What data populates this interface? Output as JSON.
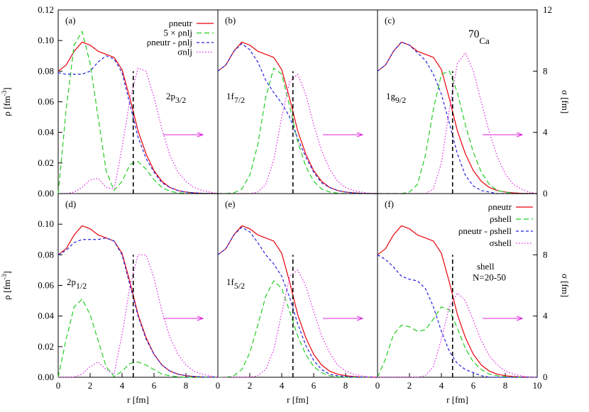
{
  "chart_data": [
    {
      "type": "line",
      "panel_label": "(a)",
      "annotation": [
        {
          "text": "2p"
        },
        {
          "text": "3/2",
          "sub": true
        }
      ],
      "ylabel": [
        {
          "text": "ρ [fm"
        },
        {
          "text": "-3",
          "sup": true
        },
        {
          "text": "]"
        }
      ],
      "xlim": [
        0,
        10
      ],
      "ylim": [
        0,
        0.12
      ],
      "y2lim": [
        0,
        12
      ],
      "yticks": [
        {
          "value": 0,
          "label": "0.00"
        },
        {
          "value": 0.02,
          "label": "0.02"
        },
        {
          "value": 0.04,
          "label": "0.04"
        },
        {
          "value": 0.06,
          "label": "0.06"
        },
        {
          "value": 0.08,
          "label": "0.08"
        },
        {
          "value": 0.1,
          "label": "0.10"
        },
        {
          "value": 0.12,
          "label": "0.12"
        }
      ],
      "vline": {
        "x": 4.7,
        "top": 0.08
      },
      "legend": "top-right",
      "x": [
        0,
        0.5,
        1,
        1.5,
        2,
        2.5,
        3,
        3.5,
        4,
        4.5,
        5,
        5.5,
        6,
        6.5,
        7,
        7.5,
        8,
        8.5,
        9,
        9.5,
        10
      ],
      "series": [
        {
          "name": "ρneutr",
          "color": "#e8000b",
          "dash": "solid",
          "values": [
            0.08,
            0.084,
            0.093,
            0.099,
            0.097,
            0.093,
            0.091,
            0.089,
            0.081,
            0.062,
            0.041,
            0.026,
            0.015,
            0.008,
            0.004,
            0.002,
            0.001,
            0.0005,
            0.0002,
            0.0001,
            0
          ]
        },
        {
          "name": "5 × ρnlj",
          "color": "#22cc22",
          "dash": "long",
          "values": [
            0,
            0.055,
            0.097,
            0.106,
            0.085,
            0.05,
            0.015,
            0.002,
            0.008,
            0.019,
            0.021,
            0.016,
            0.009,
            0.004,
            0.0015,
            0.0005,
            0.0002,
            0,
            0,
            0,
            0
          ]
        },
        {
          "name": "ρneutr - ρnlj",
          "color": "#2222dd",
          "dash": "short",
          "values": [
            0.079,
            0.078,
            0.078,
            0.078,
            0.08,
            0.086,
            0.09,
            0.088,
            0.079,
            0.058,
            0.037,
            0.023,
            0.014,
            0.007,
            0.004,
            0.002,
            0.001,
            0.0005,
            0.0002,
            0.0001,
            0
          ]
        },
        {
          "name": "σnlj",
          "color": "#e020e0",
          "dash": "dot",
          "axis": "y2",
          "values": [
            0,
            0,
            0.1,
            0.4,
            0.9,
            1.0,
            0.4,
            0.3,
            3.0,
            6.2,
            8.2,
            8.0,
            6.3,
            4.2,
            2.5,
            1.4,
            0.8,
            0.4,
            0.2,
            0.1,
            0
          ]
        }
      ]
    },
    {
      "type": "line",
      "panel_label": "(b)",
      "annotation": [
        {
          "text": "1f"
        },
        {
          "text": "7/2",
          "sub": true
        }
      ],
      "xlim": [
        0,
        10
      ],
      "ylim": [
        0,
        0.12
      ],
      "y2lim": [
        0,
        12
      ],
      "vline": {
        "x": 4.7,
        "top": 0.08
      },
      "x": [
        0,
        0.5,
        1,
        1.5,
        2,
        2.5,
        3,
        3.5,
        4,
        4.5,
        5,
        5.5,
        6,
        6.5,
        7,
        7.5,
        8,
        8.5,
        9,
        9.5,
        10
      ],
      "series": [
        {
          "color": "#e8000b",
          "dash": "solid",
          "values": [
            0.08,
            0.084,
            0.093,
            0.099,
            0.097,
            0.093,
            0.091,
            0.089,
            0.081,
            0.062,
            0.041,
            0.026,
            0.015,
            0.008,
            0.004,
            0.002,
            0.001,
            0.0005,
            0.0002,
            0.0001,
            0
          ]
        },
        {
          "color": "#22cc22",
          "dash": "long",
          "values": [
            0,
            0,
            0.0005,
            0.003,
            0.012,
            0.032,
            0.063,
            0.082,
            0.078,
            0.057,
            0.034,
            0.018,
            0.008,
            0.003,
            0.001,
            0.0003,
            0,
            0,
            0,
            0,
            0
          ]
        },
        {
          "color": "#2222dd",
          "dash": "short",
          "values": [
            0.08,
            0.084,
            0.093,
            0.098,
            0.094,
            0.086,
            0.074,
            0.066,
            0.059,
            0.05,
            0.036,
            0.024,
            0.014,
            0.007,
            0.004,
            0.002,
            0.001,
            0.0005,
            0.0002,
            0.0001,
            0
          ]
        },
        {
          "color": "#e020e0",
          "dash": "dot",
          "axis": "y2",
          "values": [
            0,
            0,
            0,
            0,
            0,
            0.1,
            0.6,
            2.2,
            5.0,
            7.3,
            7.8,
            6.5,
            4.5,
            2.8,
            1.6,
            0.8,
            0.4,
            0.2,
            0.1,
            0,
            0
          ]
        }
      ]
    },
    {
      "type": "line",
      "panel_label": "(c)",
      "annotation": [
        {
          "text": "1g"
        },
        {
          "text": "9/2",
          "sub": true
        }
      ],
      "isotope": [
        {
          "text": "70",
          "sup": true
        },
        {
          "text": "Ca"
        }
      ],
      "y2label": "σ [fm]",
      "xlim": [
        0,
        10
      ],
      "ylim": [
        0,
        0.12
      ],
      "y2lim": [
        0,
        12
      ],
      "y2ticks": [
        0,
        4,
        8,
        12
      ],
      "vline": {
        "x": 4.7,
        "top": 0.08
      },
      "x": [
        0,
        0.5,
        1,
        1.5,
        2,
        2.5,
        3,
        3.5,
        4,
        4.5,
        5,
        5.5,
        6,
        6.5,
        7,
        7.5,
        8,
        8.5,
        9,
        9.5,
        10
      ],
      "series": [
        {
          "color": "#e8000b",
          "dash": "solid",
          "values": [
            0.08,
            0.084,
            0.093,
            0.099,
            0.097,
            0.093,
            0.091,
            0.089,
            0.081,
            0.062,
            0.041,
            0.026,
            0.015,
            0.008,
            0.004,
            0.002,
            0.001,
            0.0005,
            0.0002,
            0.0001,
            0
          ]
        },
        {
          "color": "#22cc22",
          "dash": "long",
          "values": [
            0,
            0,
            0,
            0,
            0.001,
            0.006,
            0.025,
            0.055,
            0.078,
            0.08,
            0.066,
            0.045,
            0.027,
            0.014,
            0.006,
            0.002,
            0.001,
            0,
            0,
            0,
            0
          ]
        },
        {
          "color": "#2222dd",
          "dash": "short",
          "values": [
            0.08,
            0.084,
            0.093,
            0.099,
            0.097,
            0.092,
            0.087,
            0.078,
            0.065,
            0.046,
            0.026,
            0.012,
            0.005,
            0.002,
            0.001,
            0,
            0,
            0,
            0,
            0,
            0
          ]
        },
        {
          "color": "#e020e0",
          "dash": "dot",
          "axis": "y2",
          "values": [
            0,
            0,
            0,
            0,
            0,
            0,
            0,
            0.3,
            2.0,
            5.5,
            8.5,
            9.2,
            8.0,
            6.0,
            4.0,
            2.4,
            1.3,
            0.6,
            0.3,
            0.1,
            0
          ]
        }
      ]
    },
    {
      "type": "line",
      "panel_label": "(d)",
      "annotation": [
        {
          "text": "2p"
        },
        {
          "text": "1/2",
          "sub": true
        }
      ],
      "ylabel": [
        {
          "text": "ρ [fm"
        },
        {
          "text": "-3",
          "sup": true
        },
        {
          "text": "]"
        }
      ],
      "xlabel": "r [fm]",
      "xlim": [
        0,
        10
      ],
      "ylim": [
        0,
        0.12
      ],
      "y2lim": [
        0,
        12
      ],
      "xticks": [
        0,
        2,
        4,
        6,
        8
      ],
      "yticks": [
        {
          "value": 0,
          "label": "0.00"
        },
        {
          "value": 0.02,
          "label": "0.02"
        },
        {
          "value": 0.04,
          "label": "0.04"
        },
        {
          "value": 0.06,
          "label": "0.06"
        },
        {
          "value": 0.08,
          "label": "0.08"
        },
        {
          "value": 0.1,
          "label": "0.10"
        }
      ],
      "vline": {
        "x": 4.7,
        "top": 0.08
      },
      "x": [
        0,
        0.5,
        1,
        1.5,
        2,
        2.5,
        3,
        3.5,
        4,
        4.5,
        5,
        5.5,
        6,
        6.5,
        7,
        7.5,
        8,
        8.5,
        9,
        9.5,
        10
      ],
      "series": [
        {
          "color": "#e8000b",
          "dash": "solid",
          "values": [
            0.08,
            0.084,
            0.093,
            0.099,
            0.097,
            0.093,
            0.091,
            0.089,
            0.081,
            0.062,
            0.041,
            0.026,
            0.015,
            0.008,
            0.004,
            0.002,
            0.001,
            0.0005,
            0.0002,
            0.0001,
            0
          ]
        },
        {
          "color": "#22cc22",
          "dash": "long",
          "values": [
            0,
            0.025,
            0.046,
            0.051,
            0.041,
            0.024,
            0.007,
            0.0005,
            0.004,
            0.009,
            0.01,
            0.008,
            0.005,
            0.002,
            0.001,
            0.0003,
            0,
            0,
            0,
            0,
            0
          ]
        },
        {
          "color": "#2222dd",
          "dash": "short",
          "values": [
            0.08,
            0.083,
            0.088,
            0.09,
            0.09,
            0.09,
            0.091,
            0.089,
            0.08,
            0.06,
            0.04,
            0.025,
            0.015,
            0.008,
            0.004,
            0.002,
            0.001,
            0.0005,
            0.0002,
            0.0001,
            0
          ]
        },
        {
          "color": "#e020e0",
          "dash": "dot",
          "axis": "y2",
          "values": [
            0,
            0,
            0,
            0.2,
            0.7,
            1.0,
            0.5,
            0.2,
            2.8,
            6.0,
            8.0,
            8.0,
            6.5,
            4.3,
            2.6,
            1.5,
            0.8,
            0.4,
            0.2,
            0.1,
            0
          ]
        }
      ]
    },
    {
      "type": "line",
      "panel_label": "(e)",
      "annotation": [
        {
          "text": "1f"
        },
        {
          "text": "5/2",
          "sub": true
        }
      ],
      "xlabel": "r [fm]",
      "xlim": [
        0,
        10
      ],
      "ylim": [
        0,
        0.12
      ],
      "y2lim": [
        0,
        12
      ],
      "xticks": [
        0,
        2,
        4,
        6,
        8
      ],
      "vline": {
        "x": 4.7,
        "top": 0.08
      },
      "x": [
        0,
        0.5,
        1,
        1.5,
        2,
        2.5,
        3,
        3.5,
        4,
        4.5,
        5,
        5.5,
        6,
        6.5,
        7,
        7.5,
        8,
        8.5,
        9,
        9.5,
        10
      ],
      "series": [
        {
          "color": "#e8000b",
          "dash": "solid",
          "values": [
            0.08,
            0.084,
            0.093,
            0.099,
            0.097,
            0.093,
            0.091,
            0.089,
            0.081,
            0.062,
            0.041,
            0.026,
            0.015,
            0.008,
            0.004,
            0.002,
            0.001,
            0.0005,
            0.0002,
            0.0001,
            0
          ]
        },
        {
          "color": "#22cc22",
          "dash": "long",
          "values": [
            0,
            0,
            0.001,
            0.005,
            0.016,
            0.034,
            0.053,
            0.063,
            0.058,
            0.043,
            0.027,
            0.015,
            0.007,
            0.003,
            0.001,
            0.0003,
            0,
            0,
            0,
            0,
            0
          ]
        },
        {
          "color": "#2222dd",
          "dash": "short",
          "values": [
            0.08,
            0.084,
            0.093,
            0.098,
            0.095,
            0.088,
            0.08,
            0.074,
            0.066,
            0.052,
            0.035,
            0.021,
            0.011,
            0.005,
            0.002,
            0.001,
            0.0005,
            0.0002,
            0.0001,
            0,
            0
          ]
        },
        {
          "color": "#e020e0",
          "dash": "dot",
          "axis": "y2",
          "values": [
            0,
            0,
            0,
            0,
            0,
            0.1,
            0.5,
            1.8,
            4.2,
            6.6,
            7.0,
            6.0,
            4.3,
            2.7,
            1.6,
            0.8,
            0.4,
            0.2,
            0.1,
            0,
            0
          ]
        }
      ]
    },
    {
      "type": "line",
      "panel_label": "(f)",
      "annotation": [
        {
          "text": "shell"
        },
        {
          "text": "N=20-50",
          "line": 2
        }
      ],
      "xlabel": "r [fm]",
      "y2label": "σ [fm]",
      "xlim": [
        0,
        10
      ],
      "ylim": [
        0,
        0.12
      ],
      "y2lim": [
        0,
        12
      ],
      "xticks": [
        0,
        2,
        4,
        6,
        8,
        10
      ],
      "y2ticks": [
        0,
        4,
        8
      ],
      "vline": {
        "x": 4.7,
        "top": 0.08
      },
      "legend": "top-right",
      "x": [
        0,
        0.5,
        1,
        1.5,
        2,
        2.5,
        3,
        3.5,
        4,
        4.5,
        5,
        5.5,
        6,
        6.5,
        7,
        7.5,
        8,
        8.5,
        9,
        9.5,
        10
      ],
      "series": [
        {
          "name": "ρneutr",
          "color": "#e8000b",
          "dash": "solid",
          "values": [
            0.08,
            0.084,
            0.093,
            0.099,
            0.097,
            0.093,
            0.091,
            0.089,
            0.081,
            0.062,
            0.041,
            0.026,
            0.015,
            0.008,
            0.004,
            0.002,
            0.001,
            0.0005,
            0.0002,
            0.0001,
            0
          ]
        },
        {
          "name": "ρshell",
          "color": "#22cc22",
          "dash": "long",
          "values": [
            0,
            0.012,
            0.028,
            0.034,
            0.033,
            0.03,
            0.031,
            0.038,
            0.046,
            0.044,
            0.032,
            0.019,
            0.01,
            0.005,
            0.002,
            0.001,
            0.0003,
            0,
            0,
            0,
            0
          ]
        },
        {
          "name": "ρneutr - ρshell",
          "color": "#2222dd",
          "dash": "short",
          "values": [
            0.08,
            0.077,
            0.072,
            0.066,
            0.064,
            0.063,
            0.058,
            0.046,
            0.03,
            0.017,
            0.009,
            0.005,
            0.003,
            0.001,
            0,
            0,
            0,
            0,
            0,
            0,
            0
          ]
        },
        {
          "name": "σshell",
          "color": "#e020e0",
          "dash": "dot",
          "axis": "y2",
          "values": [
            0,
            0,
            0,
            0,
            0,
            0,
            0.1,
            0.7,
            2.5,
            4.6,
            5.5,
            5.0,
            3.7,
            2.4,
            1.4,
            0.8,
            0.4,
            0.2,
            0.1,
            0,
            0
          ]
        }
      ]
    }
  ]
}
